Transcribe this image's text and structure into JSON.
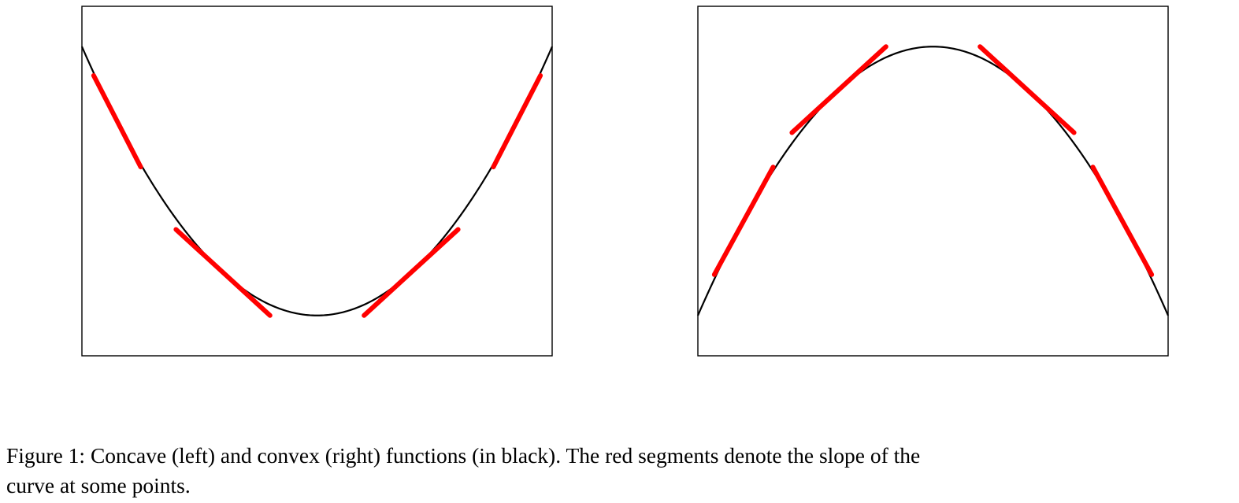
{
  "caption": {
    "line1": "Figure 1: Concave (left) and convex (right) functions (in black). The red segments denote the slope of the",
    "line2": "curve at some points."
  },
  "colors": {
    "curve": "#000000",
    "tangent": "#ff0000",
    "frame": "#000000"
  },
  "chart_data": [
    {
      "type": "line",
      "panel": "left",
      "title": "",
      "xlabel": "",
      "ylabel": "",
      "ticks": false,
      "grid": false,
      "xlim": [
        -1,
        1
      ],
      "ylim": [
        -0.15,
        1.15
      ],
      "series": [
        {
          "kind": "curve",
          "function": "y = x^2",
          "x": [
            -1,
            -0.9,
            -0.8,
            -0.7,
            -0.6,
            -0.5,
            -0.4,
            -0.3,
            -0.2,
            -0.1,
            0,
            0.1,
            0.2,
            0.3,
            0.4,
            0.5,
            0.6,
            0.7,
            0.8,
            0.9,
            1
          ],
          "y": [
            1,
            0.81,
            0.64,
            0.49,
            0.36,
            0.25,
            0.16,
            0.09,
            0.04,
            0.01,
            0,
            0.01,
            0.04,
            0.09,
            0.16,
            0.25,
            0.36,
            0.49,
            0.64,
            0.81,
            1
          ]
        }
      ],
      "tangent_segments": [
        {
          "x0": 0.75,
          "x1": 0.95,
          "slope": 1.7
        },
        {
          "x0": -0.95,
          "x1": -0.75,
          "slope": -1.7
        },
        {
          "x0": -0.6,
          "x1": -0.2,
          "slope": -0.8
        },
        {
          "x0": 0.2,
          "x1": 0.6,
          "slope": 0.8
        }
      ]
    },
    {
      "type": "line",
      "panel": "right",
      "title": "",
      "xlabel": "",
      "ylabel": "",
      "ticks": false,
      "grid": false,
      "xlim": [
        -1,
        1
      ],
      "ylim": [
        -1.15,
        0.15
      ],
      "series": [
        {
          "kind": "curve",
          "function": "y = -x^2",
          "x": [
            -1,
            -0.9,
            -0.8,
            -0.7,
            -0.6,
            -0.5,
            -0.4,
            -0.3,
            -0.2,
            -0.1,
            0,
            0.1,
            0.2,
            0.3,
            0.4,
            0.5,
            0.6,
            0.7,
            0.8,
            0.9,
            1
          ],
          "y": [
            -1,
            -0.81,
            -0.64,
            -0.49,
            -0.36,
            -0.25,
            -0.16,
            -0.09,
            -0.04,
            -0.01,
            0,
            -0.01,
            -0.04,
            -0.09,
            -0.16,
            -0.25,
            -0.36,
            -0.49,
            -0.64,
            -0.81,
            -1
          ]
        }
      ],
      "tangent_segments": [
        {
          "x0": -0.93,
          "x1": -0.68,
          "slope": 1.6
        },
        {
          "x0": -0.6,
          "x1": -0.2,
          "slope": 0.8
        },
        {
          "x0": 0.2,
          "x1": 0.6,
          "slope": -0.8
        },
        {
          "x0": 0.68,
          "x1": 0.93,
          "slope": -1.6
        }
      ]
    }
  ]
}
